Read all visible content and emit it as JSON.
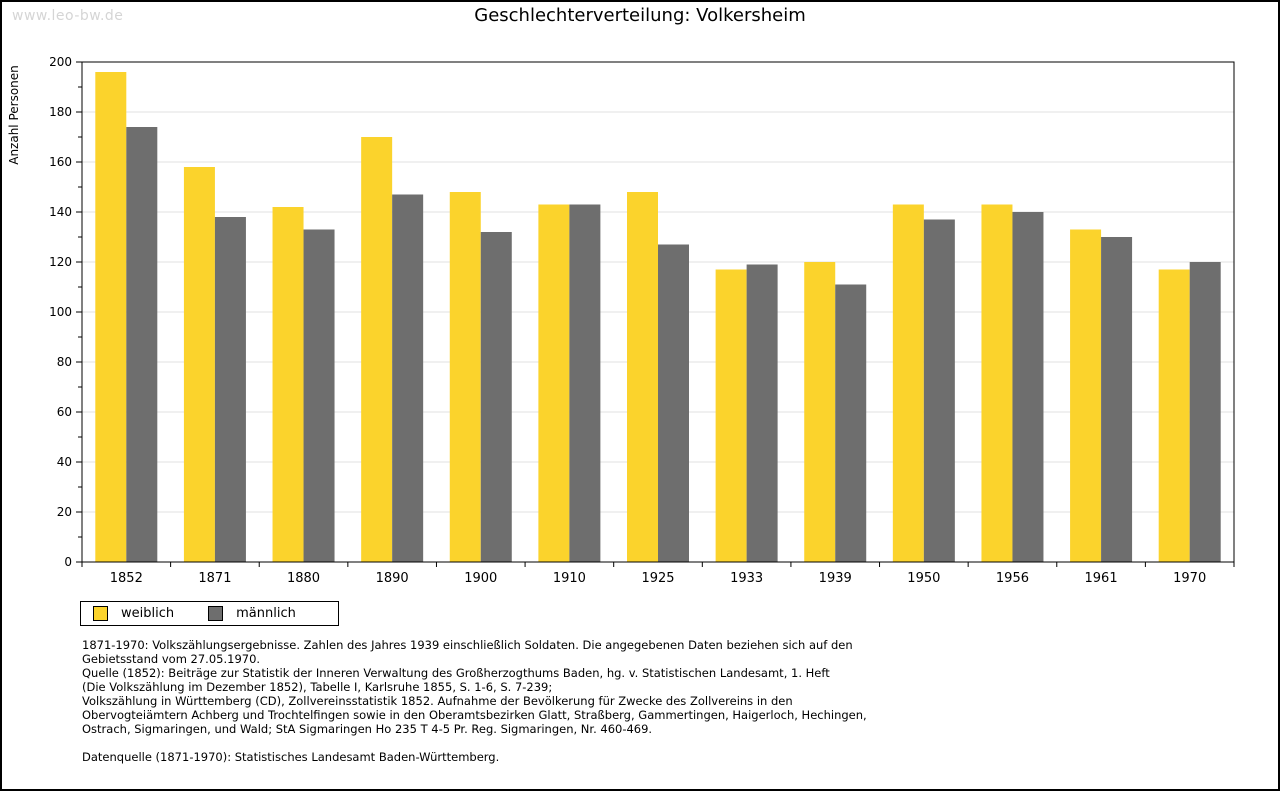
{
  "watermark": "www.leo-bw.de",
  "chart_data": {
    "type": "bar",
    "title": "Geschlechterverteilung: Volkersheim",
    "xlabel": "",
    "ylabel": "Anzahl Personen",
    "ylim": [
      0,
      200
    ],
    "ytick_step": 20,
    "yminor_step": 10,
    "grid": true,
    "legend_position": "bottom-left",
    "categories": [
      "1852",
      "1871",
      "1880",
      "1890",
      "1900",
      "1910",
      "1925",
      "1933",
      "1939",
      "1950",
      "1956",
      "1961",
      "1970"
    ],
    "series": [
      {
        "name": "weiblich",
        "color": "#FBD32C",
        "values": [
          196,
          158,
          142,
          170,
          148,
          143,
          148,
          117,
          120,
          143,
          143,
          133,
          117
        ]
      },
      {
        "name": "männlich",
        "color": "#6E6E6E",
        "values": [
          174,
          138,
          133,
          147,
          132,
          143,
          127,
          119,
          111,
          137,
          140,
          130,
          120
        ]
      }
    ],
    "colors": {
      "axis": "#000000",
      "gridline": "#e2e2e2",
      "background": "#ffffff"
    }
  },
  "footnotes": {
    "lines": [
      "1871-1970: Volkszählungsergebnisse. Zahlen des Jahres 1939 einschließlich Soldaten. Die angegebenen Daten beziehen sich auf den",
      "Gebietsstand vom 27.05.1970.",
      "Quelle (1852): Beiträge zur Statistik der Inneren Verwaltung des Großherzogthums Baden, hg. v. Statistischen Landesamt, 1. Heft",
      "(Die Volkszählung im Dezember 1852), Tabelle I, Karlsruhe 1855, S. 1-6, S. 7-239;",
      "Volkszählung in Württemberg (CD), Zollvereinsstatistik 1852. Aufnahme der Bevölkerung für Zwecke des Zollvereins in den",
      "Obervogteiämtern Achberg und Trochtelfingen sowie in den Oberamtsbezirken Glatt, Straßberg, Gammertingen, Haigerloch, Hechingen,",
      "Ostrach, Sigmaringen, und Wald; StA Sigmaringen Ho 235 T 4-5 Pr. Reg. Sigmaringen, Nr. 460-469."
    ],
    "datasource": "Datenquelle (1871-1970): Statistisches Landesamt Baden-Württemberg."
  }
}
